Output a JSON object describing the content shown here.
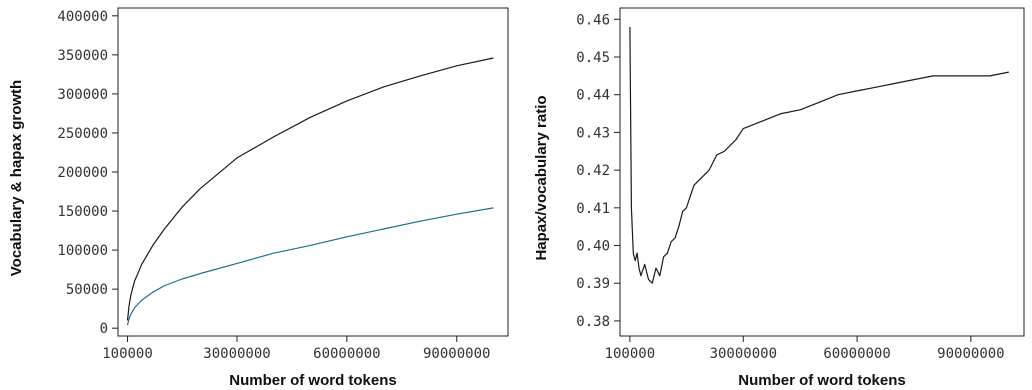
{
  "chart_data": [
    {
      "type": "line",
      "title": "",
      "xlabel": "Number of word tokens",
      "ylabel": "Vocabulary & hapax growth",
      "xticks": [
        100000,
        30000000,
        60000000,
        90000000
      ],
      "xtick_labels": [
        "100000",
        "30000000",
        "60000000",
        "90000000"
      ],
      "yticks": [
        0,
        50000,
        100000,
        150000,
        200000,
        250000,
        300000,
        350000,
        400000
      ],
      "ytick_labels": [
        "0",
        "50000",
        "100000",
        "150000",
        "200000",
        "250000",
        "300000",
        "350000",
        "400000"
      ],
      "xlim": [
        -2500000,
        104000000
      ],
      "ylim": [
        -10000,
        410000
      ],
      "grid": false,
      "series": [
        {
          "color": "#1a1a1a",
          "x": [
            100000,
            500000,
            1000000,
            2000000,
            4000000,
            7000000,
            10000000,
            15000000,
            20000000,
            30000000,
            40000000,
            50000000,
            60000000,
            70000000,
            80000000,
            90000000,
            100000000
          ],
          "y": [
            10000,
            28000,
            42000,
            60000,
            82000,
            106000,
            126000,
            155000,
            179000,
            218000,
            245000,
            270000,
            291000,
            309000,
            323000,
            336000,
            346000
          ]
        },
        {
          "color": "#1f6e8c",
          "x": [
            100000,
            500000,
            1000000,
            2000000,
            4000000,
            7000000,
            10000000,
            15000000,
            20000000,
            30000000,
            40000000,
            50000000,
            60000000,
            70000000,
            80000000,
            90000000,
            100000000
          ],
          "y": [
            4000,
            12000,
            18000,
            26000,
            36000,
            46000,
            54000,
            63000,
            70000,
            83000,
            96000,
            106000,
            117000,
            127000,
            137000,
            146000,
            154000
          ]
        }
      ]
    },
    {
      "type": "line",
      "title": "",
      "xlabel": "Number of word tokens",
      "ylabel": "Hapax/vocabulary ratio",
      "xticks": [
        100000,
        30000000,
        60000000,
        90000000
      ],
      "xtick_labels": [
        "100000",
        "30000000",
        "60000000",
        "90000000"
      ],
      "yticks": [
        0.38,
        0.39,
        0.4,
        0.41,
        0.42,
        0.43,
        0.44,
        0.45,
        0.46
      ],
      "ytick_labels": [
        "0.38",
        "0.39",
        "0.40",
        "0.41",
        "0.42",
        "0.43",
        "0.44",
        "0.45",
        "0.46"
      ],
      "xlim": [
        -2500000,
        104000000
      ],
      "ylim": [
        0.376,
        0.463
      ],
      "grid": false,
      "series": [
        {
          "color": "#1a1a1a",
          "x": [
            100000,
            500000,
            1000000,
            1500000,
            2000000,
            2500000,
            3000000,
            4000000,
            5000000,
            6000000,
            7000000,
            8000000,
            9000000,
            10000000,
            11000000,
            12000000,
            13000000,
            14000000,
            15000000,
            17000000,
            19000000,
            21000000,
            23000000,
            25000000,
            28000000,
            30000000,
            35000000,
            40000000,
            45000000,
            50000000,
            55000000,
            60000000,
            65000000,
            70000000,
            75000000,
            80000000,
            85000000,
            90000000,
            95000000,
            100000000
          ],
          "y": [
            0.458,
            0.41,
            0.398,
            0.396,
            0.398,
            0.394,
            0.392,
            0.395,
            0.391,
            0.39,
            0.394,
            0.392,
            0.397,
            0.398,
            0.401,
            0.402,
            0.405,
            0.409,
            0.41,
            0.416,
            0.418,
            0.42,
            0.424,
            0.425,
            0.428,
            0.431,
            0.433,
            0.435,
            0.436,
            0.438,
            0.44,
            0.441,
            0.442,
            0.443,
            0.444,
            0.445,
            0.445,
            0.445,
            0.445,
            0.446
          ]
        }
      ]
    }
  ]
}
